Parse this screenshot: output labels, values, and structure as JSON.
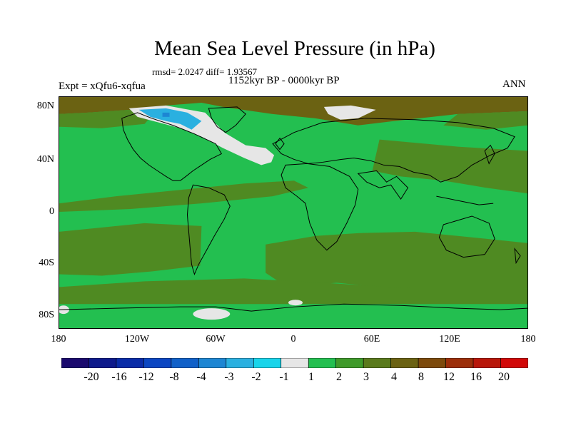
{
  "title": "Mean Sea Level Pressure (in hPa)",
  "stats": "rmsd= 2.0247 diff= 1.93567",
  "period": "1152kyr BP - 0000kyr BP",
  "experiment": "Expt = xQfu6-xqfua",
  "season": "ANN",
  "y_axis_labels": [
    "80N",
    "40N",
    "0",
    "40S",
    "80S"
  ],
  "x_axis_labels": [
    "180",
    "120W",
    "60W",
    "0",
    "60E",
    "120E",
    "180"
  ],
  "colorbar": {
    "colors": [
      "#1a0a6e",
      "#0e1a8c",
      "#0a2ca8",
      "#0b46c2",
      "#1060c8",
      "#1d86d3",
      "#2ab0e0",
      "#18d4ea",
      "#e6e6e6",
      "#23bf50",
      "#3f9a2a",
      "#5a7a1c",
      "#6b6212",
      "#7d4a0c",
      "#9c2e0a",
      "#b8160a",
      "#d10808"
    ],
    "labels": [
      "-20",
      "-16",
      "-12",
      "-8",
      "-4",
      "-3",
      "-2",
      "-1",
      "1",
      "2",
      "3",
      "4",
      "8",
      "12",
      "16",
      "20"
    ]
  },
  "palette": {
    "green": "#23bf50",
    "olive": "#4f8a22",
    "brown": "#6b6212",
    "gray": "#e6e6e6",
    "cyan": "#2ab0e0"
  }
}
